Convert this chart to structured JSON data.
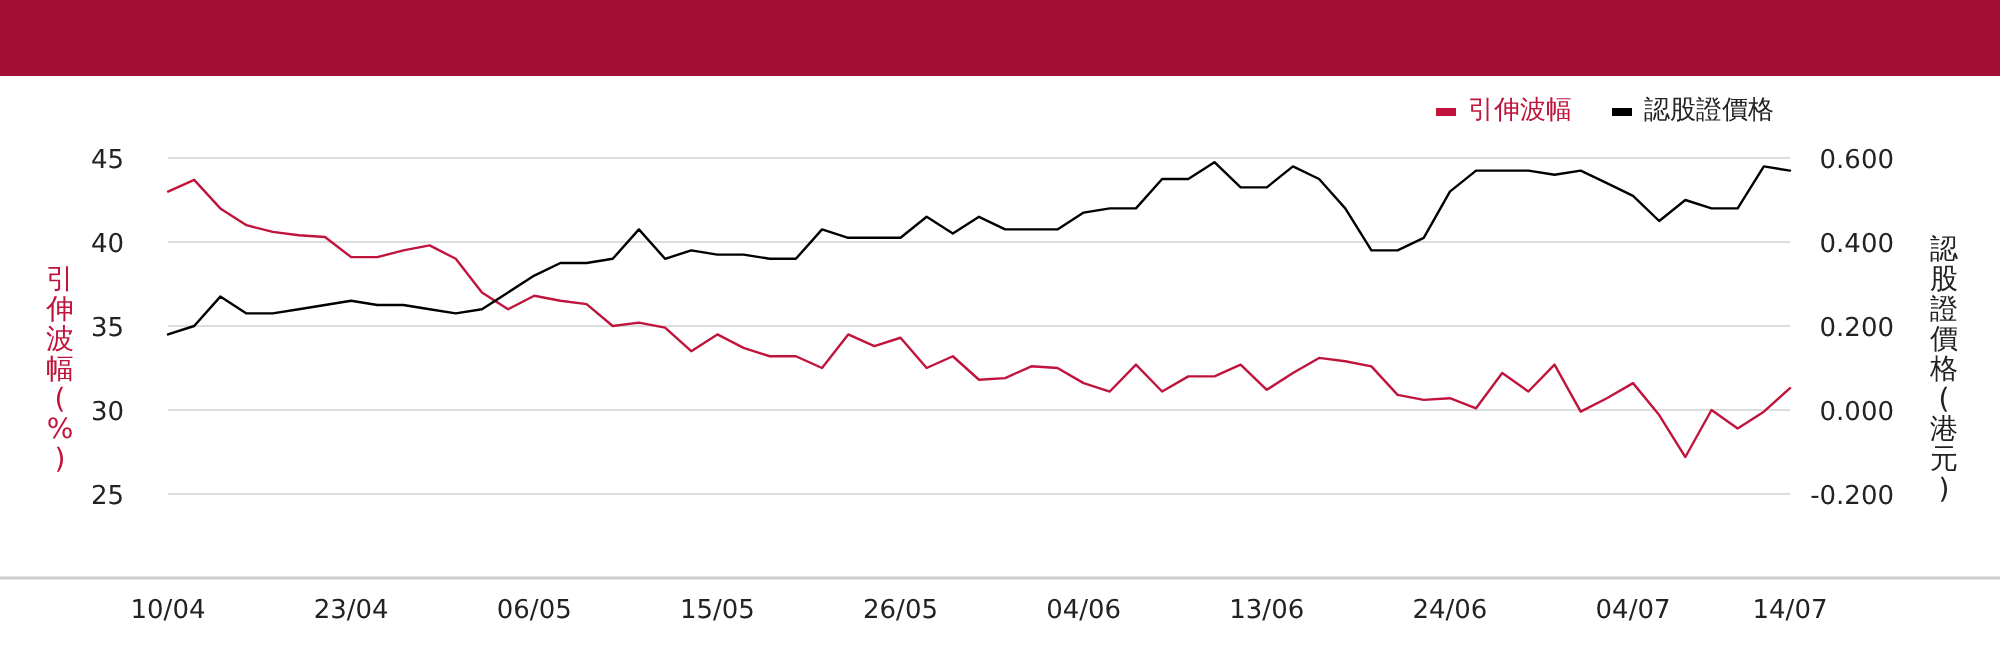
{
  "chart_data": {
    "type": "line",
    "categories": [
      "10/04",
      null,
      null,
      null,
      null,
      null,
      null,
      "23/04",
      null,
      null,
      null,
      null,
      null,
      null,
      "06/05",
      null,
      null,
      null,
      null,
      null,
      null,
      "15/05",
      null,
      null,
      null,
      null,
      null,
      null,
      "26/05",
      null,
      null,
      null,
      null,
      null,
      null,
      "04/06",
      null,
      null,
      null,
      null,
      null,
      null,
      "13/06",
      null,
      null,
      null,
      null,
      null,
      null,
      "24/06",
      null,
      null,
      null,
      null,
      null,
      null,
      "04/07",
      null,
      null,
      null,
      null,
      null,
      "14/07"
    ],
    "series": [
      {
        "name": "引伸波幅",
        "color": "#c0143c",
        "values": [
          43.0,
          43.7,
          42.0,
          41.0,
          40.6,
          40.4,
          40.3,
          39.1,
          39.1,
          39.5,
          39.8,
          39.0,
          37.0,
          36.0,
          36.8,
          36.5,
          36.3,
          35.0,
          35.2,
          34.9,
          33.5,
          34.5,
          33.7,
          33.2,
          33.2,
          32.5,
          34.5,
          33.8,
          34.3,
          32.5,
          33.2,
          31.8,
          31.9,
          32.6,
          32.5,
          31.6,
          31.1,
          32.7,
          31.1,
          32.0,
          32.0,
          32.7,
          31.2,
          32.2,
          33.1,
          32.9,
          32.6,
          30.9,
          30.6,
          30.7,
          30.1,
          32.2,
          31.1,
          32.7,
          29.9,
          30.7,
          31.6,
          29.7,
          27.2,
          30.0,
          28.9,
          29.9,
          31.3
        ]
      },
      {
        "name": "認股證價格",
        "color": "#000000",
        "axis": "y2",
        "values": [
          0.18,
          0.2,
          0.27,
          0.23,
          0.23,
          0.24,
          0.25,
          0.26,
          0.25,
          0.25,
          0.24,
          0.23,
          0.24,
          0.28,
          0.32,
          0.35,
          0.35,
          0.36,
          0.43,
          0.36,
          0.38,
          0.37,
          0.37,
          0.36,
          0.36,
          0.43,
          0.41,
          0.41,
          0.41,
          0.46,
          0.42,
          0.46,
          0.43,
          0.43,
          0.43,
          0.47,
          0.48,
          0.48,
          0.55,
          0.55,
          0.59,
          0.53,
          0.53,
          0.58,
          0.55,
          0.48,
          0.38,
          0.38,
          0.41,
          0.52,
          0.57,
          0.57,
          0.57,
          0.56,
          0.57,
          0.54,
          0.51,
          0.45,
          0.5,
          0.48,
          0.48,
          0.58,
          0.57
        ]
      }
    ],
    "ylabel": "引伸波幅(%)",
    "y2label": "認股證價格(港元)",
    "ylim": [
      20,
      45
    ],
    "yticks": [
      25,
      30,
      35,
      40,
      45
    ],
    "y2lim": [
      -0.4,
      0.6
    ],
    "y2ticks": [
      {
        "value": -0.2,
        "label": "-0.200"
      },
      {
        "value": 0,
        "label": "0.000"
      },
      {
        "value": 0.2,
        "label": "0.200"
      },
      {
        "value": 0.4,
        "label": "0.400"
      },
      {
        "value": 0.6,
        "label": "0.600"
      }
    ],
    "grid": "y",
    "legend": "top right",
    "marker": "none",
    "line_style": "solid"
  }
}
